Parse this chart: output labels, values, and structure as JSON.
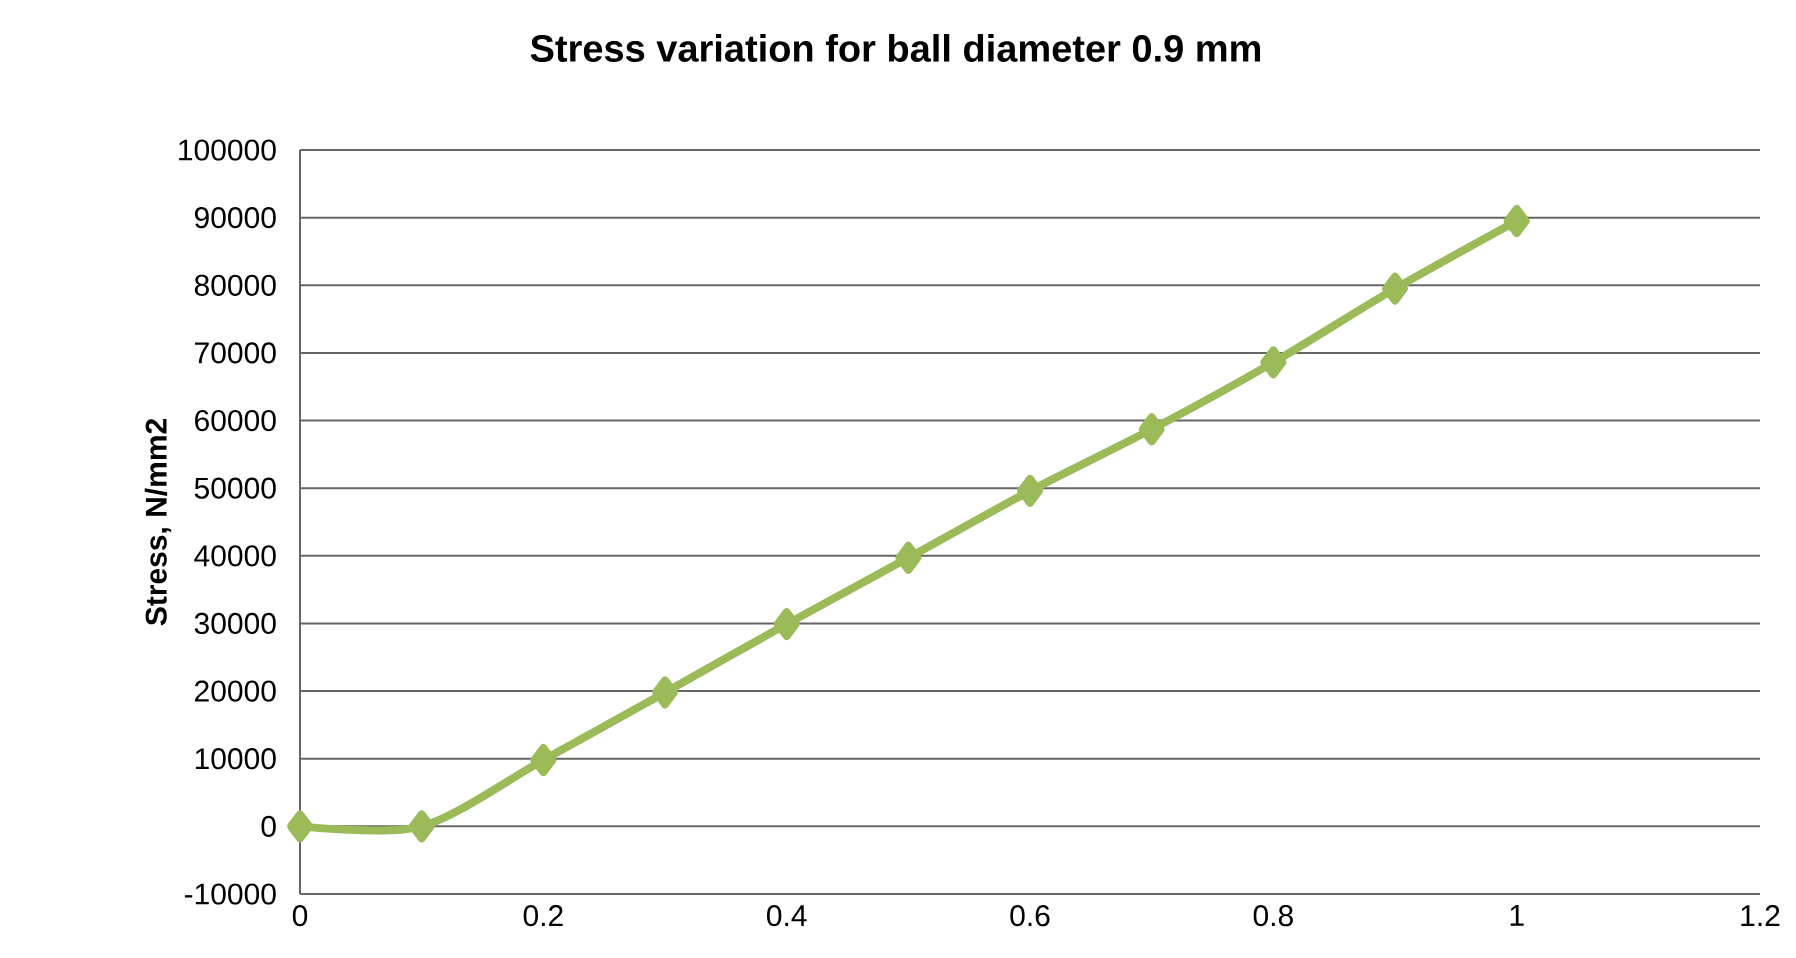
{
  "chart_data": {
    "type": "line",
    "title": "Stress variation for ball diameter 0.9 mm",
    "ylabel": "Stress, N/mm2",
    "x": [
      0,
      0.1,
      0.2,
      0.3,
      0.4,
      0.5,
      0.6,
      0.7,
      0.8,
      0.9,
      1
    ],
    "series": [
      {
        "color": "#9bbb59",
        "values": [
          0,
          0,
          9800,
          19800,
          29900,
          39700,
          49600,
          58700,
          68600,
          79500,
          89500
        ]
      }
    ],
    "xlim": [
      0,
      1.2
    ],
    "ylim": [
      -10000,
      100000
    ],
    "xticks": [
      0,
      0.2,
      0.4,
      0.6,
      0.8,
      1,
      1.2
    ],
    "yticks": [
      -10000,
      0,
      10000,
      20000,
      30000,
      40000,
      50000,
      60000,
      70000,
      80000,
      90000,
      100000
    ],
    "grid": "y",
    "marker": "diamond",
    "line_style": "solid"
  }
}
